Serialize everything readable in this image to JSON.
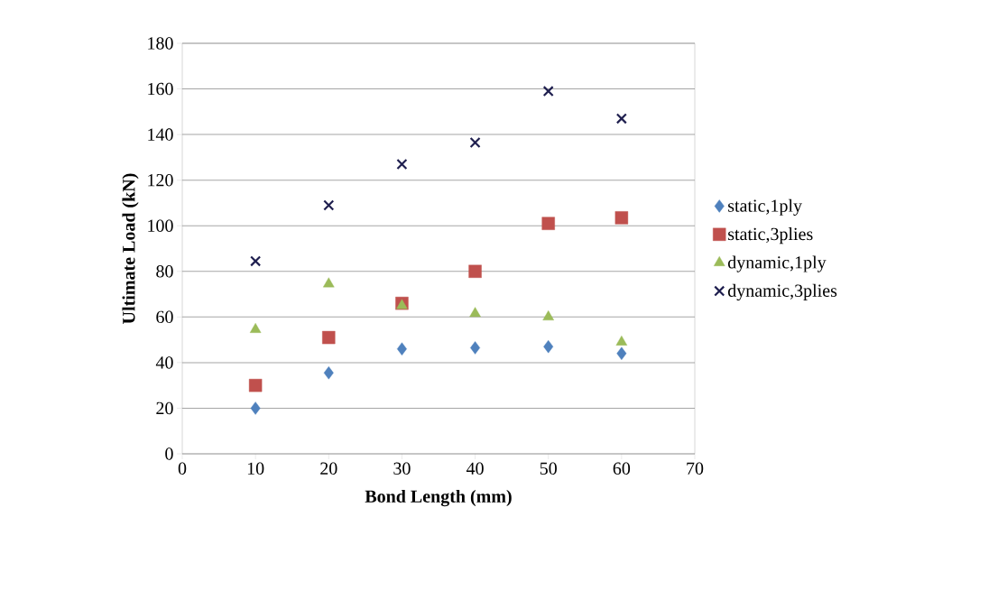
{
  "chart_data": {
    "type": "scatter",
    "xlabel": "Bond Length (mm)",
    "ylabel": "Ultimate Load (kN)",
    "x": [
      10,
      20,
      30,
      40,
      50,
      60
    ],
    "series": [
      {
        "name": "static,1ply",
        "color": "#4f81bd",
        "marker": "diamond",
        "values": [
          20,
          35.5,
          46,
          46.5,
          47,
          44
        ]
      },
      {
        "name": "static,3plies",
        "color": "#c0504d",
        "marker": "square",
        "values": [
          30,
          51,
          66,
          80,
          101,
          103.5
        ]
      },
      {
        "name": "dynamic,1ply",
        "color": "#9bbb59",
        "marker": "triangle",
        "values": [
          54.5,
          74.5,
          65,
          61.5,
          60,
          49
        ]
      },
      {
        "name": "dynamic,3plies",
        "color": "#1f1f4f",
        "marker": "cross",
        "values": [
          84.5,
          109,
          127,
          136.5,
          159,
          147
        ]
      }
    ],
    "xlim": [
      0,
      70
    ],
    "xticks": [
      0,
      10,
      20,
      30,
      40,
      50,
      60,
      70
    ],
    "ylim": [
      0,
      180
    ],
    "yticks": [
      0,
      20,
      40,
      60,
      80,
      100,
      120,
      140,
      160,
      180
    ],
    "grid": "y",
    "legend": "right"
  }
}
